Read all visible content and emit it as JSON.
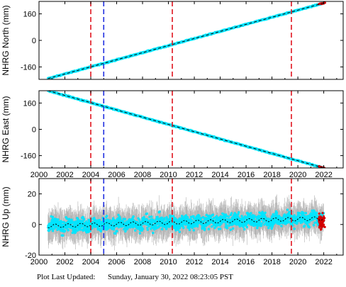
{
  "footer": {
    "label": "Plot Last Updated:",
    "timestamp": "Sunday, January 30, 2022 08:23:05 PST"
  },
  "colors": {
    "data": "#00e5ff",
    "error_bars": "#b3b3b3",
    "trend": "#000000",
    "recent": "#d40000",
    "red_line": "#e0141e",
    "blue_line": "#1f2ee0"
  },
  "chart_data": [
    {
      "type": "scatter",
      "ylabel": "NHRG North (mm)",
      "xlim": [
        2000,
        2023.5
      ],
      "ylim": [
        -235,
        235
      ],
      "yticks": [
        -160,
        0,
        160
      ],
      "yticklabels": [
        "-160",
        "0",
        "160"
      ],
      "xticks": [
        2000,
        2002,
        2004,
        2006,
        2008,
        2010,
        2012,
        2014,
        2016,
        2018,
        2020,
        2022
      ],
      "xticklabels": [
        "2000",
        "2002",
        "2004",
        "2006",
        "2008",
        "2010",
        "2012",
        "2014",
        "2016",
        "2018",
        "2020",
        "2022"
      ],
      "show_xticklabels": false,
      "series": [
        {
          "role": "data",
          "x": [
            2000.7,
            2022.0
          ],
          "y": [
            -230,
            225
          ],
          "noise": 3
        },
        {
          "role": "trend",
          "x": [
            2000.7,
            2022.0
          ],
          "y": [
            -230,
            225
          ]
        }
      ],
      "vlines": [
        {
          "x": 2004.0,
          "color": "red"
        },
        {
          "x": 2005.0,
          "color": "blue"
        },
        {
          "x": 2010.3,
          "color": "red"
        },
        {
          "x": 2019.5,
          "color": "red"
        }
      ]
    },
    {
      "type": "scatter",
      "ylabel": "NHRG East (mm)",
      "xlim": [
        2000,
        2023.5
      ],
      "ylim": [
        -235,
        235
      ],
      "yticks": [
        -160,
        0,
        160
      ],
      "yticklabels": [
        "-160",
        "0",
        "160"
      ],
      "xticks": [
        2000,
        2002,
        2004,
        2006,
        2008,
        2010,
        2012,
        2014,
        2016,
        2018,
        2020,
        2022
      ],
      "xticklabels": [
        "2000",
        "2002",
        "2004",
        "2006",
        "2008",
        "2010",
        "2012",
        "2014",
        "2016",
        "2018",
        "2020",
        "2022"
      ],
      "show_xticklabels": true,
      "series": [
        {
          "role": "data",
          "x": [
            2000.7,
            2022.0
          ],
          "y": [
            235,
            -235
          ],
          "noise": 3
        },
        {
          "role": "trend",
          "x": [
            2000.7,
            2022.0
          ],
          "y": [
            235,
            -235
          ]
        }
      ],
      "vlines": [
        {
          "x": 2004.0,
          "color": "red"
        },
        {
          "x": 2005.0,
          "color": "blue"
        },
        {
          "x": 2010.3,
          "color": "red"
        },
        {
          "x": 2019.5,
          "color": "red"
        }
      ]
    },
    {
      "type": "scatter",
      "ylabel": "NHRG Up (mm)",
      "xlim": [
        2000,
        2023.5
      ],
      "ylim": [
        -20,
        30
      ],
      "yticks": [
        -20,
        0,
        20
      ],
      "yticklabels": [
        "-20",
        "0",
        "20"
      ],
      "xticks": [
        2000,
        2002,
        2004,
        2006,
        2008,
        2010,
        2012,
        2014,
        2016,
        2018,
        2020,
        2022
      ],
      "xticklabels": [
        "2000",
        "2002",
        "2004",
        "2006",
        "2008",
        "2010",
        "2012",
        "2014",
        "2016",
        "2018",
        "2020",
        "2022"
      ],
      "show_xticklabels": true,
      "series": [
        {
          "role": "data",
          "x": [
            2000.7,
            2022.0
          ],
          "y": [
            -1,
            4
          ],
          "noise": 5
        },
        {
          "role": "trend",
          "x": [
            2000.7,
            2022.0
          ],
          "y": [
            -1,
            4
          ]
        }
      ],
      "vlines": [
        {
          "x": 2004.0,
          "color": "red"
        },
        {
          "x": 2005.0,
          "color": "blue"
        },
        {
          "x": 2010.3,
          "color": "red"
        },
        {
          "x": 2019.5,
          "color": "red"
        }
      ]
    }
  ]
}
